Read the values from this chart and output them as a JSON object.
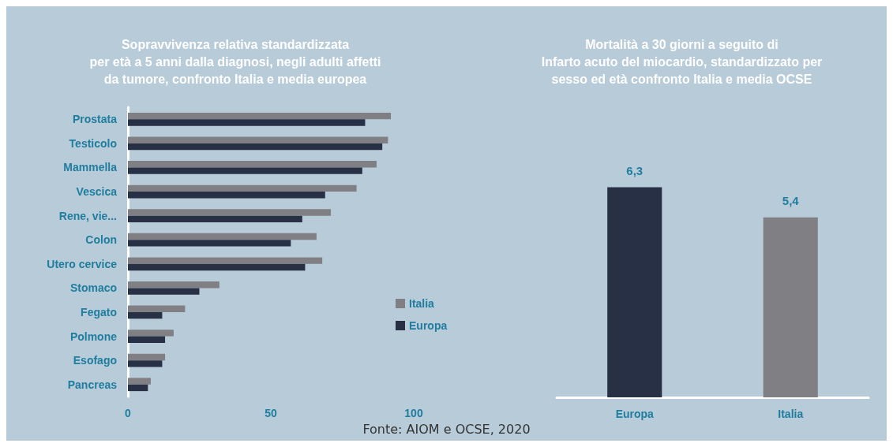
{
  "chart_data": [
    {
      "type": "bar",
      "orientation": "horizontal",
      "title": "Sopravvivenza relativa standardizzata\nper età a 5 anni dalla diagnosi, negli adulti affetti\nda tumore, confronto Italia e media europea",
      "categories": [
        "Prostata",
        "Testicolo",
        "Mammella",
        "Vescica",
        "Rene, vie...",
        "Colon",
        "Utero cervice",
        "Stomaco",
        "Fegato",
        "Polmone",
        "Esofago",
        "Pancreas"
      ],
      "series": [
        {
          "name": "Italia",
          "color": "#808084",
          "values": [
            92,
            91,
            87,
            80,
            71,
            66,
            68,
            32,
            20,
            16,
            13,
            8
          ]
        },
        {
          "name": "Europa",
          "color": "#273044",
          "values": [
            83,
            89,
            82,
            69,
            61,
            57,
            62,
            25,
            12,
            13,
            12,
            7
          ]
        }
      ],
      "xlim": [
        0,
        100
      ],
      "xticks": [
        0,
        50,
        100
      ],
      "grid": false,
      "legend": "right",
      "annotations": [
        "Fonte: AIOM e OCSE, 2020"
      ]
    },
    {
      "type": "bar",
      "title": "Mortalità a 30 giorni a seguito di\nInfarto acuto del miocardio, standardizzato per\nsesso ed età confronto Italia e media OCSE",
      "categories": [
        "Europa",
        "Italia"
      ],
      "values": [
        6.3,
        5.4
      ],
      "colors": [
        "#273044",
        "#808084"
      ],
      "value_labels": [
        "6,3",
        "5,4"
      ],
      "tick_labels": "x",
      "grid": false,
      "legend": false
    }
  ]
}
